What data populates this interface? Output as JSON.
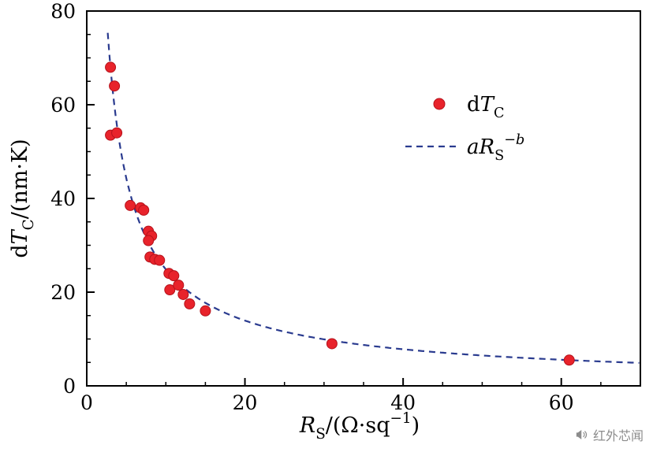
{
  "chart_data": {
    "type": "scatter",
    "title": "",
    "xlabel_text": "R_S/(Ω·sq^-1)",
    "ylabel_text": "dT_C/(nm·K)",
    "xlabel_parts": [
      {
        "t": "R",
        "i": 1
      },
      {
        "t": "S",
        "sub": 1
      },
      {
        "t": "/(Ω·sq"
      },
      {
        "t": "−1",
        "sup": 1
      },
      {
        "t": ")"
      }
    ],
    "ylabel_parts": [
      {
        "t": "d"
      },
      {
        "t": "T",
        "i": 1
      },
      {
        "t": "C",
        "sub": 1
      },
      {
        "t": "/(nm·K)"
      }
    ],
    "xlim": [
      0,
      70
    ],
    "ylim": [
      0,
      80
    ],
    "x_major_ticks": [
      0,
      20,
      40,
      60
    ],
    "x_minor_step": 5,
    "y_major_ticks": [
      0,
      20,
      40,
      60,
      80
    ],
    "y_minor_step": 5,
    "grid": false,
    "points": [
      [
        3.0,
        68.0
      ],
      [
        3.5,
        64.0
      ],
      [
        3.0,
        53.5
      ],
      [
        3.8,
        54.0
      ],
      [
        5.5,
        38.5
      ],
      [
        6.8,
        38.0
      ],
      [
        7.2,
        37.5
      ],
      [
        7.8,
        33.0
      ],
      [
        8.2,
        32.0
      ],
      [
        7.8,
        31.0
      ],
      [
        8.0,
        27.5
      ],
      [
        8.6,
        27.0
      ],
      [
        9.2,
        26.8
      ],
      [
        10.4,
        24.0
      ],
      [
        11.0,
        23.5
      ],
      [
        10.5,
        20.5
      ],
      [
        11.6,
        21.5
      ],
      [
        12.2,
        19.5
      ],
      [
        13.0,
        17.5
      ],
      [
        15.0,
        16.0
      ],
      [
        31.0,
        9.0
      ],
      [
        61.0,
        5.5
      ]
    ],
    "fit": {
      "a": 170,
      "b": 0.835,
      "x_start": 2.45,
      "x_end": 70
    },
    "legend": [
      {
        "marker": "dot",
        "label_text": "dT_C",
        "label_parts": [
          {
            "t": "d"
          },
          {
            "t": "T",
            "i": 1
          },
          {
            "t": "C",
            "sub": 1
          }
        ]
      },
      {
        "marker": "dash",
        "label_text": "aR_S^-b",
        "label_parts": [
          {
            "t": "a",
            "i": 1
          },
          {
            "t": "R",
            "i": 1
          },
          {
            "t": "S",
            "sub": 1
          },
          {
            "t": "−b",
            "sup": 1,
            "i": 1
          }
        ]
      }
    ],
    "legend_position": "upper-right-inside",
    "colors": {
      "point": "#e8232b",
      "point_edge": "#b5121b",
      "fit": "#2a3b8f",
      "axis": "#000000",
      "watermark": "#8c8c8c"
    }
  },
  "watermark": {
    "text": "红外芯闻"
  }
}
